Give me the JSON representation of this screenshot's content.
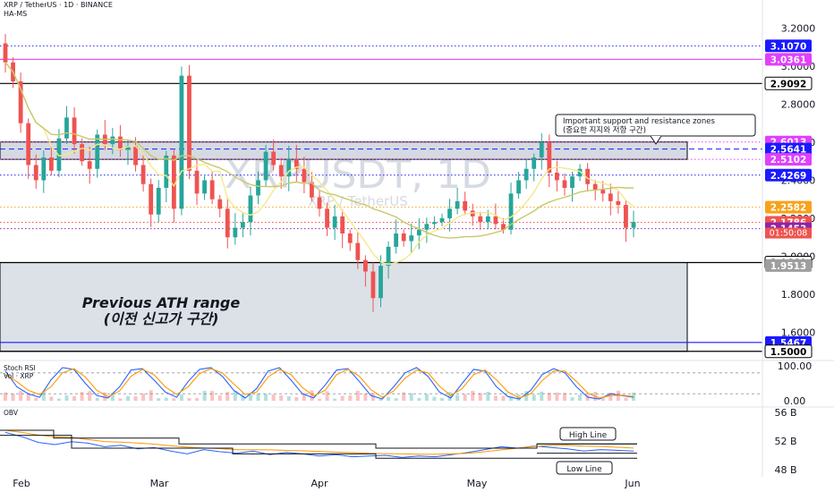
{
  "header": {
    "symbol_line": "XRP / TetherUS · 1D · BINANCE",
    "indicator": "HA-MS"
  },
  "watermark": {
    "ticker": "XRPUSDT, 1D",
    "name": "XRP / TetherUS"
  },
  "colors": {
    "bull": "#26a69a",
    "bear": "#ef5350",
    "ma_fast": "#f5e98a",
    "ma_slow": "#c8c86a",
    "blue_level": "#1a1aff",
    "magenta_level": "#e040fb",
    "orange_level": "#f7a21b",
    "purple_level": "#8e24aa",
    "zone_fill": "#b2bccb",
    "stoch_k": "#2962ff",
    "stoch_d": "#ff9800"
  },
  "chart_data": [
    {
      "type": "candlestick",
      "title": "XRP / TetherUS · 1D · BINANCE",
      "x_ticks": [
        "Feb",
        "Mar",
        "Apr",
        "May",
        "Jun"
      ],
      "y_ticks": [
        "3.2000",
        "3.0000",
        "2.8000",
        "2.6000",
        "2.4000",
        "2.2000",
        "2.0000",
        "1.8000",
        "1.6000"
      ],
      "ylim": [
        1.48,
        3.25
      ],
      "close_path": [
        3.02,
        2.92,
        2.7,
        2.48,
        2.4,
        2.52,
        2.45,
        2.62,
        2.73,
        2.59,
        2.5,
        2.46,
        2.64,
        2.59,
        2.63,
        2.56,
        2.58,
        2.48,
        2.38,
        2.22,
        2.36,
        2.53,
        2.25,
        2.95,
        2.45,
        2.33,
        2.4,
        2.3,
        2.25,
        2.1,
        2.15,
        2.18,
        2.32,
        2.4,
        2.55,
        2.48,
        2.42,
        2.51,
        2.46,
        2.39,
        2.31,
        2.25,
        2.15,
        2.21,
        2.12,
        2.07,
        1.98,
        1.92,
        1.78,
        1.95,
        2.05,
        2.12,
        2.08,
        2.11,
        2.14,
        2.17,
        2.18,
        2.2,
        2.25,
        2.29,
        2.24,
        2.21,
        2.18,
        2.21,
        2.17,
        2.14,
        2.33,
        2.4,
        2.46,
        2.52,
        2.6,
        2.44,
        2.4,
        2.36,
        2.42,
        2.46,
        2.38,
        2.35,
        2.33,
        2.29,
        2.27,
        2.15,
        2.18
      ],
      "annotations": [
        "Important support and resistance zones",
        "(중요한 지지와 저항 구간)",
        "Previous ATH range",
        "(이전 신고가 구간)"
      ],
      "levels": [
        {
          "label": "3.1070",
          "value": 3.107,
          "color": "#1a1aff",
          "style": "dotted"
        },
        {
          "label": "3.0361",
          "value": 3.0361,
          "color": "#e040fb",
          "style": "solid"
        },
        {
          "label": "2.9092",
          "value": 2.9092,
          "color": "#000000",
          "style": "solid"
        },
        {
          "label": "2.6013",
          "value": 2.6013,
          "color": "#e040fb",
          "style": "dotted"
        },
        {
          "label": "2.5641",
          "value": 2.5641,
          "color": "#1a1aff",
          "style": "dashed"
        },
        {
          "label": "2.5102",
          "value": 2.5102,
          "color": "#e040fb",
          "style": "dotted"
        },
        {
          "label": "2.4269",
          "value": 2.4269,
          "color": "#1a1aff",
          "style": "dotted"
        },
        {
          "label": "2.2582",
          "value": 2.2582,
          "color": "#f7a21b",
          "style": "dotted"
        },
        {
          "label": "2.1786",
          "value": 2.1786,
          "color": "#ef5350",
          "style": "dotted"
        },
        {
          "label": "2.1453",
          "value": 2.1453,
          "color": "#8e24aa",
          "style": "dotted"
        },
        {
          "label": "1.9669",
          "value": 1.9669,
          "color": "#000000",
          "style": "solid"
        },
        {
          "label": "1.9513",
          "value": 1.9513,
          "color": "#9e9e9e",
          "style": "none"
        },
        {
          "label": "1.5467",
          "value": 1.5467,
          "color": "#1a1aff",
          "style": "solid"
        },
        {
          "label": "1.5000",
          "value": 1.5,
          "color": "#000000",
          "style": "solid"
        }
      ],
      "countdown": "01:50:08",
      "zones": [
        {
          "name": "support-resistance",
          "from": 2.51,
          "to": 2.6013
        },
        {
          "name": "previous-ath",
          "from": 1.5,
          "to": 1.9669
        }
      ]
    },
    {
      "type": "line",
      "title": "Stoch RSI",
      "legend": [
        "Stoch RSI",
        "Vol · XRP"
      ],
      "y_ticks": [
        "100.00",
        "0.00"
      ],
      "ylim": [
        0,
        100
      ],
      "series": [
        {
          "name": "K",
          "values": [
            85,
            40,
            20,
            10,
            60,
            95,
            90,
            50,
            15,
            8,
            40,
            88,
            92,
            60,
            25,
            10,
            55,
            90,
            95,
            70,
            30,
            8,
            35,
            85,
            95,
            60,
            20,
            8,
            45,
            88,
            92,
            55,
            15,
            5,
            40,
            80,
            95,
            70,
            25,
            8,
            50,
            90,
            85,
            40,
            12,
            5,
            30,
            75,
            92,
            80,
            40,
            10,
            5,
            20,
            15,
            10
          ]
        },
        {
          "name": "D",
          "values": [
            75,
            55,
            30,
            18,
            40,
            80,
            92,
            68,
            30,
            12,
            28,
            70,
            90,
            75,
            40,
            18,
            40,
            78,
            92,
            80,
            48,
            18,
            25,
            68,
            90,
            75,
            38,
            14,
            30,
            75,
            90,
            70,
            32,
            10,
            28,
            65,
            88,
            80,
            42,
            15,
            35,
            75,
            88,
            60,
            25,
            8,
            20,
            58,
            85,
            85,
            55,
            22,
            8,
            15,
            16,
            12
          ]
        }
      ]
    },
    {
      "type": "line",
      "title": "OBV",
      "y_ticks": [
        "56 B",
        "52 B",
        "48 B"
      ],
      "ylim": [
        47,
        57
      ],
      "annotations": [
        "High Line",
        "Low Line"
      ],
      "series": [
        {
          "name": "OBV",
          "values": [
            53.2,
            52.6,
            51.8,
            51.5,
            51.9,
            51.7,
            51.2,
            51.4,
            50.9,
            51.1,
            50.6,
            50.2,
            50.8,
            50.5,
            50.3,
            50.6,
            50.1,
            50.4,
            50.2,
            49.9,
            50.1,
            49.8,
            49.9,
            50.0,
            49.7,
            49.9,
            49.8,
            50.1,
            50.4,
            50.8,
            51.2,
            51.0,
            51.3,
            51.1,
            50.9,
            50.6,
            50.8,
            50.7,
            50.6
          ]
        }
      ]
    }
  ]
}
